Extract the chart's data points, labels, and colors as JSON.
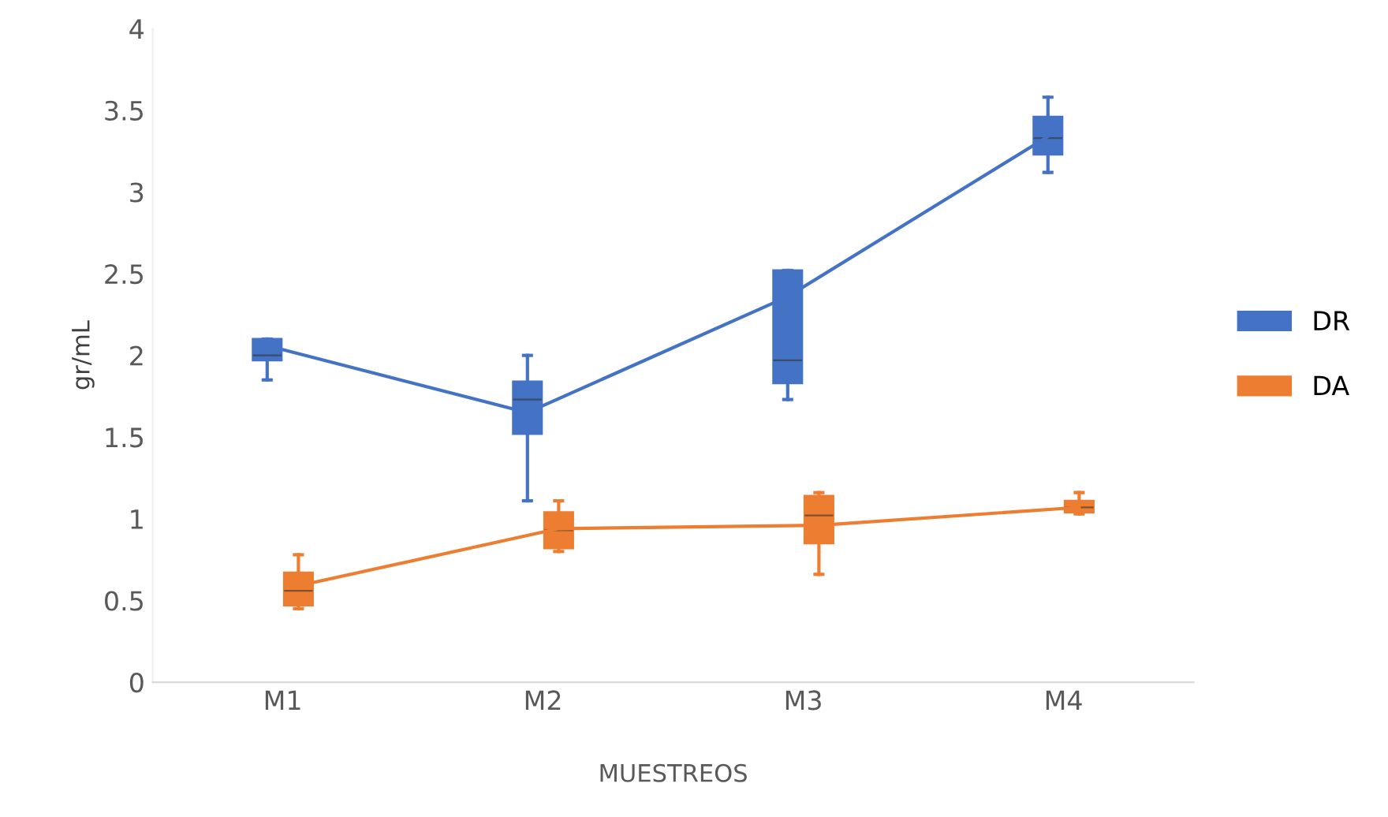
{
  "chart_data": {
    "type": "box",
    "xlabel": "MUESTREOS",
    "ylabel": "gr/mL",
    "categories": [
      "M1",
      "M2",
      "M3",
      "M4"
    ],
    "series": [
      {
        "name": "DR",
        "color": "#4472c4",
        "boxes": [
          {
            "low": 1.85,
            "q1": 1.97,
            "median": 2.0,
            "q3": 2.1,
            "high": 2.1
          },
          {
            "low": 1.11,
            "q1": 1.52,
            "median": 1.73,
            "q3": 1.84,
            "high": 2.0
          },
          {
            "low": 1.73,
            "q1": 1.83,
            "median": 1.97,
            "q3": 2.52,
            "high": 2.52
          },
          {
            "low": 3.12,
            "q1": 3.23,
            "median": 3.33,
            "q3": 3.46,
            "high": 3.58
          }
        ]
      },
      {
        "name": "DA",
        "color": "#ed7d31",
        "boxes": [
          {
            "low": 0.45,
            "q1": 0.47,
            "median": 0.56,
            "q3": 0.67,
            "high": 0.78
          },
          {
            "low": 0.8,
            "q1": 0.82,
            "median": 0.93,
            "q3": 1.04,
            "high": 1.11
          },
          {
            "low": 0.66,
            "q1": 0.85,
            "median": 1.02,
            "q3": 1.14,
            "high": 1.16
          },
          {
            "low": 1.03,
            "q1": 1.04,
            "median": 1.07,
            "q3": 1.11,
            "high": 1.16
          }
        ]
      },
      {
        "type": "line",
        "color": "#4472c4",
        "values": [
          2.06,
          1.65,
          2.36,
          3.34
        ]
      },
      {
        "type": "line",
        "color": "#ed7d31",
        "values": [
          0.59,
          0.94,
          0.96,
          1.07
        ]
      }
    ],
    "ylim": [
      0,
      4
    ],
    "yticks": [
      0,
      0.5,
      1,
      1.5,
      2,
      2.5,
      3,
      3.5,
      4
    ],
    "grid": false,
    "legend": "right"
  }
}
